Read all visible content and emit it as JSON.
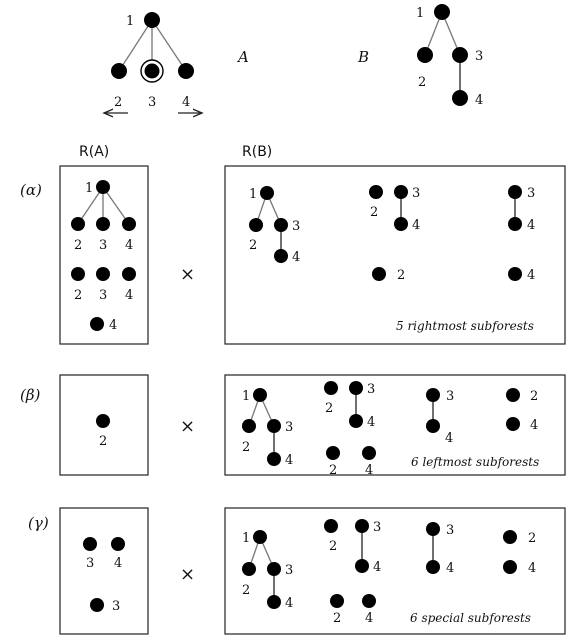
{
  "figure": {
    "tree_a": {
      "name": "A",
      "root_label": "1",
      "child_labels": [
        "2",
        "3",
        "4"
      ],
      "marked_node": "3",
      "arrows": [
        "left-arrow",
        "right-arrow"
      ]
    },
    "tree_b": {
      "name": "B",
      "root_label": "1",
      "child_labels": [
        "2",
        "3"
      ],
      "grandchild_label": "4"
    },
    "headers": {
      "ra": "R(A)",
      "rb": "R(B)"
    },
    "times_symbol": "×",
    "rows": [
      {
        "label": "(α)",
        "caption": "5 rightmost subforests",
        "left_labels": [
          "1",
          "2",
          "3",
          "4",
          "2",
          "3",
          "4",
          "4"
        ],
        "right_labels": [
          "1",
          "2",
          "3",
          "4",
          "2",
          "3",
          "4",
          "3",
          "4",
          "2",
          "4"
        ]
      },
      {
        "label": "(β)",
        "caption": "6 leftmost subforests",
        "left_labels": [
          "2"
        ],
        "right_labels": [
          "1",
          "2",
          "3",
          "4",
          "2",
          "3",
          "4",
          "2",
          "4",
          "3",
          "4",
          "2",
          "4"
        ]
      },
      {
        "label": "(γ)",
        "caption": "6 special subforests",
        "left_labels": [
          "3",
          "4",
          "3"
        ],
        "right_labels": [
          "1",
          "2",
          "3",
          "4",
          "2",
          "3",
          "4",
          "2",
          "4",
          "3",
          "4",
          "2",
          "4"
        ]
      }
    ]
  }
}
